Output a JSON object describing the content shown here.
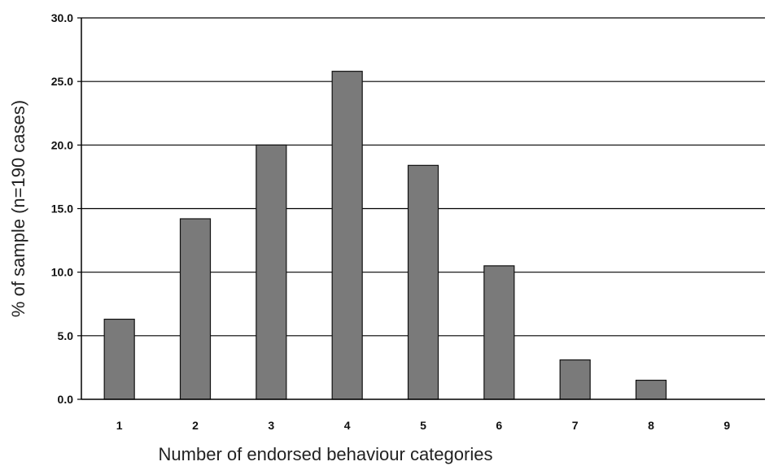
{
  "chart_data": {
    "type": "bar",
    "title": "",
    "xlabel": "Number of endorsed behaviour categories",
    "ylabel": "% of sample (n=190 cases)",
    "categories": [
      "1",
      "2",
      "3",
      "4",
      "5",
      "6",
      "7",
      "8",
      "9"
    ],
    "values": [
      6.3,
      14.2,
      20.0,
      25.8,
      18.4,
      10.5,
      3.1,
      1.5,
      0.0
    ],
    "ylim": [
      0,
      30
    ],
    "yticks": [
      "0.0",
      "5.0",
      "10.0",
      "15.0",
      "20.0",
      "25.0",
      "30.0"
    ],
    "grid": true,
    "legend": "none",
    "colors": {
      "bar": "#7a7a7a",
      "bar_stroke": "#111111",
      "grid": "#000000"
    }
  }
}
